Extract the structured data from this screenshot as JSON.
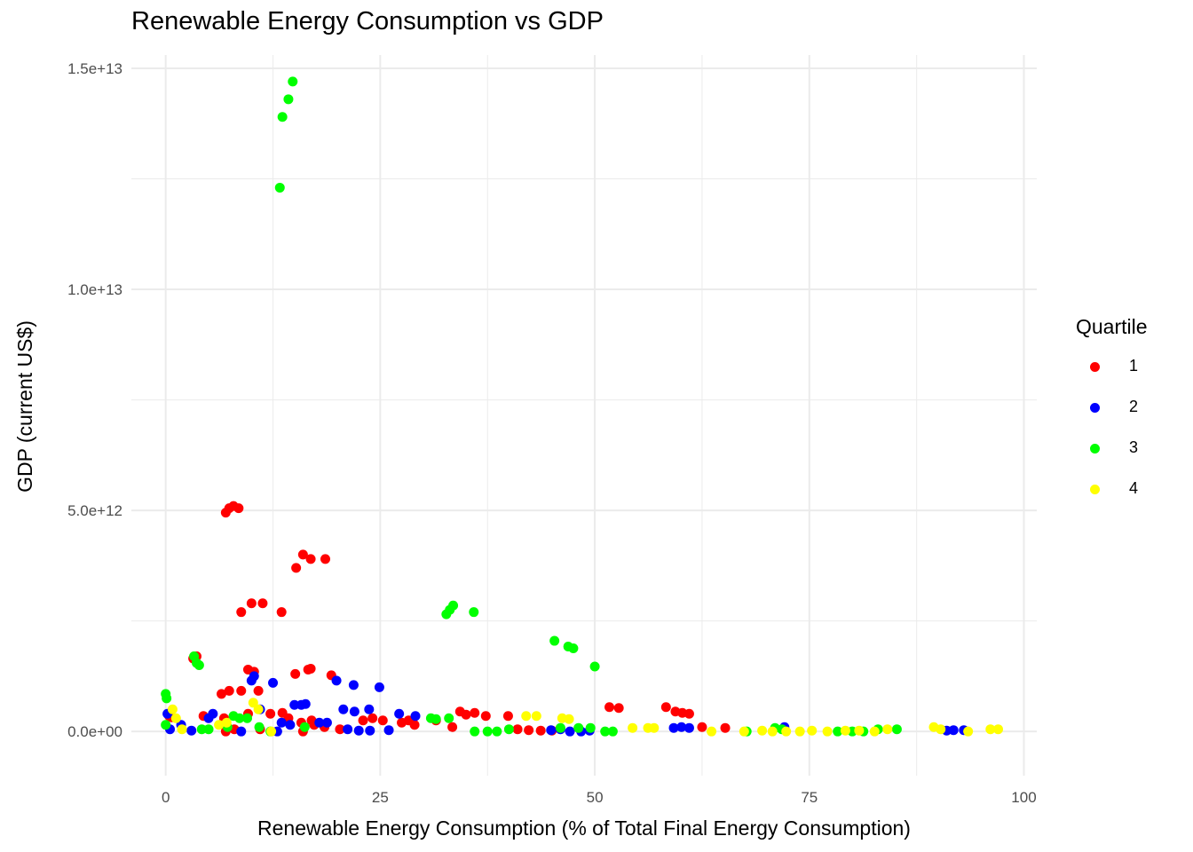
{
  "chart_data": {
    "type": "scatter",
    "title": "Renewable Energy Consumption vs GDP",
    "xlabel": "Renewable Energy Consumption (% of Total Final Energy Consumption)",
    "ylabel": "GDP (current US$)",
    "xlim": [
      -4,
      101.5
    ],
    "ylim": [
      -1000000000000.0,
      15300000000000.0
    ],
    "x_ticks": [
      0,
      25,
      50,
      75,
      100
    ],
    "x_tick_labels": [
      "0",
      "25",
      "50",
      "75",
      "100"
    ],
    "y_ticks": [
      0,
      5000000000000.0,
      10000000000000.0,
      15000000000000.0
    ],
    "y_tick_labels": [
      "0.0e+00",
      "5.0e+12",
      "1.0e+13",
      "1.5e+13"
    ],
    "grid": true,
    "legend": {
      "title": "Quartile",
      "position": "right"
    },
    "series": [
      {
        "name": "1",
        "color": "#ff0000",
        "points": [
          [
            7.0,
            4950000000000.0
          ],
          [
            7.4,
            5050000000000.0
          ],
          [
            7.9,
            5100000000000.0
          ],
          [
            8.5,
            5050000000000.0
          ],
          [
            15.2,
            3700000000000.0
          ],
          [
            16.0,
            4000000000000.0
          ],
          [
            16.9,
            3900000000000.0
          ],
          [
            18.6,
            3900000000000.0
          ],
          [
            8.8,
            2700000000000.0
          ],
          [
            10.0,
            2900000000000.0
          ],
          [
            11.3,
            2900000000000.0
          ],
          [
            13.5,
            2700000000000.0
          ],
          [
            3.2,
            1650000000000.0
          ],
          [
            3.6,
            1700000000000.0
          ],
          [
            9.6,
            1400000000000.0
          ],
          [
            10.3,
            1350000000000.0
          ],
          [
            15.1,
            1300000000000.0
          ],
          [
            16.6,
            1400000000000.0
          ],
          [
            16.9,
            1420000000000.0
          ],
          [
            19.3,
            1270000000000.0
          ],
          [
            6.5,
            850000000000.0
          ],
          [
            7.4,
            920000000000.0
          ],
          [
            8.8,
            920000000000.0
          ],
          [
            10.8,
            920000000000.0
          ],
          [
            0.4,
            350000000000.0
          ],
          [
            0.7,
            320000000000.0
          ],
          [
            4.4,
            350000000000.0
          ],
          [
            6.8,
            300000000000.0
          ],
          [
            9.6,
            400000000000.0
          ],
          [
            12.2,
            400000000000.0
          ],
          [
            13.6,
            420000000000.0
          ],
          [
            14.3,
            300000000000.0
          ],
          [
            15.8,
            200000000000.0
          ],
          [
            17.0,
            250000000000.0
          ],
          [
            17.3,
            150000000000.0
          ],
          [
            18.5,
            100000000000.0
          ],
          [
            20.3,
            50000000000.0
          ],
          [
            23.0,
            250000000000.0
          ],
          [
            24.1,
            300000000000.0
          ],
          [
            25.3,
            250000000000.0
          ],
          [
            27.5,
            200000000000.0
          ],
          [
            28.3,
            250000000000.0
          ],
          [
            29.0,
            150000000000.0
          ],
          [
            31.5,
            250000000000.0
          ],
          [
            33.4,
            100000000000.0
          ],
          [
            34.3,
            450000000000.0
          ],
          [
            35.0,
            380000000000.0
          ],
          [
            36.0,
            420000000000.0
          ],
          [
            37.3,
            350000000000.0
          ],
          [
            39.9,
            350000000000.0
          ],
          [
            41.0,
            50000000000.0
          ],
          [
            42.3,
            30000000000.0
          ],
          [
            43.7,
            20000000000.0
          ],
          [
            45.0,
            20000000000.0
          ],
          [
            51.7,
            550000000000.0
          ],
          [
            52.8,
            530000000000.0
          ],
          [
            58.3,
            550000000000.0
          ],
          [
            59.4,
            450000000000.0
          ],
          [
            60.2,
            420000000000.0
          ],
          [
            61.0,
            400000000000.0
          ],
          [
            62.5,
            100000000000.0
          ],
          [
            65.2,
            80000000000.0
          ],
          [
            7.0,
            0.0
          ],
          [
            8.0,
            50000000000.0
          ],
          [
            11.0,
            50000000000.0
          ],
          [
            16.0,
            0.0
          ]
        ]
      },
      {
        "name": "2",
        "color": "#0000ff",
        "points": [
          [
            0.2,
            400000000000.0
          ],
          [
            0.5,
            50000000000.0
          ],
          [
            1.8,
            150000000000.0
          ],
          [
            5.0,
            300000000000.0
          ],
          [
            5.5,
            400000000000.0
          ],
          [
            10.0,
            1150000000000.0
          ],
          [
            10.3,
            1250000000000.0
          ],
          [
            12.5,
            1100000000000.0
          ],
          [
            11.0,
            500000000000.0
          ],
          [
            15.0,
            600000000000.0
          ],
          [
            15.8,
            600000000000.0
          ],
          [
            16.3,
            620000000000.0
          ],
          [
            19.9,
            1150000000000.0
          ],
          [
            21.9,
            1050000000000.0
          ],
          [
            24.9,
            1000000000000.0
          ],
          [
            20.7,
            500000000000.0
          ],
          [
            22.0,
            450000000000.0
          ],
          [
            23.7,
            500000000000.0
          ],
          [
            27.2,
            400000000000.0
          ],
          [
            29.1,
            350000000000.0
          ],
          [
            13.5,
            200000000000.0
          ],
          [
            14.5,
            150000000000.0
          ],
          [
            17.9,
            200000000000.0
          ],
          [
            18.8,
            200000000000.0
          ],
          [
            21.2,
            50000000000.0
          ],
          [
            22.5,
            20000000000.0
          ],
          [
            23.8,
            20000000000.0
          ],
          [
            26.0,
            30000000000.0
          ],
          [
            44.9,
            30000000000.0
          ],
          [
            46.0,
            50000000000.0
          ],
          [
            47.1,
            0.0
          ],
          [
            48.4,
            0.0
          ],
          [
            49.4,
            20000000000.0
          ],
          [
            59.2,
            80000000000.0
          ],
          [
            60.1,
            100000000000.0
          ],
          [
            61.0,
            80000000000.0
          ],
          [
            72.1,
            100000000000.0
          ],
          [
            91.0,
            20000000000.0
          ],
          [
            91.8,
            30000000000.0
          ],
          [
            93.0,
            30000000000.0
          ],
          [
            3.0,
            20000000000.0
          ],
          [
            8.8,
            0.0
          ],
          [
            13.0,
            0.0
          ]
        ]
      },
      {
        "name": "3",
        "color": "#00ff00",
        "points": [
          [
            13.3,
            12300000000000.0
          ],
          [
            13.6,
            13900000000000.0
          ],
          [
            14.3,
            14300000000000.0
          ],
          [
            14.8,
            14700000000000.0
          ],
          [
            32.7,
            2650000000000.0
          ],
          [
            33.1,
            2750000000000.0
          ],
          [
            33.5,
            2850000000000.0
          ],
          [
            35.9,
            2700000000000.0
          ],
          [
            45.3,
            2050000000000.0
          ],
          [
            46.9,
            1920000000000.0
          ],
          [
            47.5,
            1880000000000.0
          ],
          [
            50.0,
            1470000000000.0
          ],
          [
            0.0,
            850000000000.0
          ],
          [
            0.1,
            750000000000.0
          ],
          [
            3.3,
            1700000000000.0
          ],
          [
            3.6,
            1550000000000.0
          ],
          [
            3.9,
            1500000000000.0
          ],
          [
            0.0,
            150000000000.0
          ],
          [
            4.2,
            50000000000.0
          ],
          [
            5.0,
            50000000000.0
          ],
          [
            7.2,
            100000000000.0
          ],
          [
            7.9,
            350000000000.0
          ],
          [
            8.6,
            300000000000.0
          ],
          [
            9.5,
            300000000000.0
          ],
          [
            10.9,
            100000000000.0
          ],
          [
            12.2,
            0.0
          ],
          [
            16.2,
            100000000000.0
          ],
          [
            30.9,
            300000000000.0
          ],
          [
            31.5,
            280000000000.0
          ],
          [
            33.0,
            300000000000.0
          ],
          [
            36.0,
            0.0
          ],
          [
            37.5,
            0.0
          ],
          [
            38.6,
            0.0
          ],
          [
            40.0,
            50000000000.0
          ],
          [
            46.0,
            80000000000.0
          ],
          [
            48.1,
            80000000000.0
          ],
          [
            49.5,
            80000000000.0
          ],
          [
            51.2,
            0.0
          ],
          [
            52.1,
            0.0
          ],
          [
            67.7,
            0.0
          ],
          [
            71.0,
            80000000000.0
          ],
          [
            71.8,
            50000000000.0
          ],
          [
            78.3,
            0.0
          ],
          [
            80.0,
            0.0
          ],
          [
            81.3,
            0.0
          ],
          [
            83.0,
            50000000000.0
          ],
          [
            85.2,
            50000000000.0
          ]
        ]
      },
      {
        "name": "4",
        "color": "#ffff00",
        "points": [
          [
            0.8,
            500000000000.0
          ],
          [
            1.2,
            300000000000.0
          ],
          [
            1.9,
            50000000000.0
          ],
          [
            6.2,
            150000000000.0
          ],
          [
            7.1,
            200000000000.0
          ],
          [
            10.2,
            650000000000.0
          ],
          [
            10.8,
            500000000000.0
          ],
          [
            12.3,
            0.0
          ],
          [
            42.0,
            350000000000.0
          ],
          [
            43.2,
            350000000000.0
          ],
          [
            46.2,
            300000000000.0
          ],
          [
            47.0,
            280000000000.0
          ],
          [
            54.4,
            80000000000.0
          ],
          [
            56.2,
            80000000000.0
          ],
          [
            56.9,
            80000000000.0
          ],
          [
            63.6,
            0.0
          ],
          [
            67.4,
            0.0
          ],
          [
            69.5,
            20000000000.0
          ],
          [
            70.7,
            0.0
          ],
          [
            72.3,
            0.0
          ],
          [
            73.9,
            0.0
          ],
          [
            75.3,
            20000000000.0
          ],
          [
            77.1,
            0.0
          ],
          [
            79.2,
            20000000000.0
          ],
          [
            80.8,
            20000000000.0
          ],
          [
            82.6,
            0.0
          ],
          [
            84.1,
            50000000000.0
          ],
          [
            89.5,
            100000000000.0
          ],
          [
            90.3,
            50000000000.0
          ],
          [
            93.5,
            0.0
          ],
          [
            96.1,
            50000000000.0
          ],
          [
            97.0,
            50000000000.0
          ]
        ]
      }
    ]
  }
}
